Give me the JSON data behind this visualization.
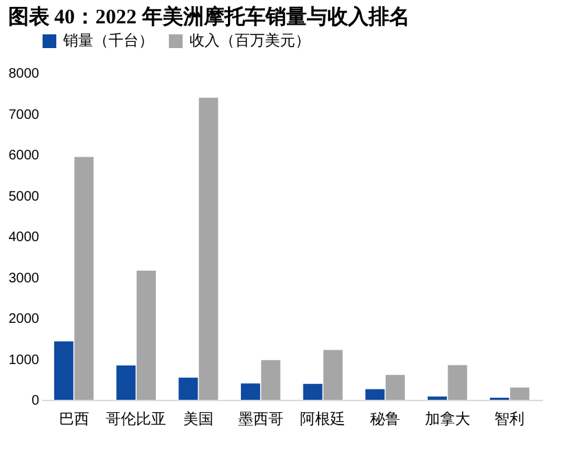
{
  "chart_data": {
    "type": "bar",
    "title": "图表 40：2022 年美洲摩托车销量与收入排名",
    "categories": [
      "巴西",
      "哥伦比亚",
      "美国",
      "墨西哥",
      "阿根廷",
      "秘鲁",
      "加拿大",
      "智利"
    ],
    "series": [
      {
        "name": "销量（千台）",
        "color": "#0f4aa1",
        "values": [
          1430,
          840,
          540,
          400,
          390,
          260,
          80,
          50
        ]
      },
      {
        "name": "收入（百万美元）",
        "color": "#a6a6a6",
        "values": [
          5940,
          3160,
          7390,
          970,
          1220,
          610,
          850,
          300
        ]
      }
    ],
    "ylim": [
      0,
      8000
    ],
    "yticks": [
      0,
      1000,
      2000,
      3000,
      4000,
      5000,
      6000,
      7000,
      8000
    ],
    "grid": false,
    "legend": "top"
  }
}
